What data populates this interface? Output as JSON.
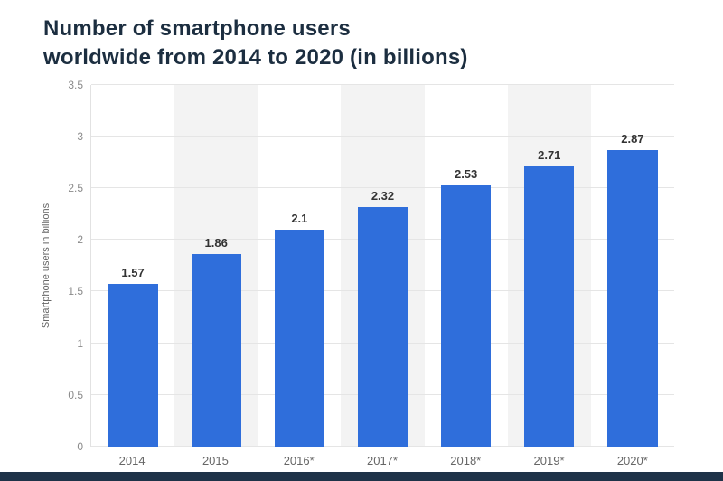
{
  "header": {
    "title_line1": "Number of smartphone users",
    "title_line2": "worldwide from 2014 to 2020 (in billions)"
  },
  "chart_data": {
    "type": "bar",
    "title": "Number of smartphone users worldwide from 2014 to 2020 (in billions)",
    "categories": [
      "2014",
      "2015",
      "2016*",
      "2017*",
      "2018*",
      "2019*",
      "2020*"
    ],
    "values": [
      1.57,
      1.86,
      2.1,
      2.32,
      2.53,
      2.71,
      2.87
    ],
    "xlabel": "",
    "ylabel": "Smartphone users in billions",
    "ylim": [
      0,
      3.5
    ],
    "yticks": [
      "0",
      "0.5",
      "1",
      "1.5",
      "2",
      "2.5",
      "3",
      "3.5"
    ],
    "grid": "horizontal",
    "legend": "none"
  },
  "colors": {
    "bar": "#2f6edb",
    "alt_band": "#f3f3f3",
    "footer_bar": "#1e3248",
    "title_text": "#1c2e40",
    "axis_text": "#8a8a8a",
    "value_label": "#333333"
  }
}
